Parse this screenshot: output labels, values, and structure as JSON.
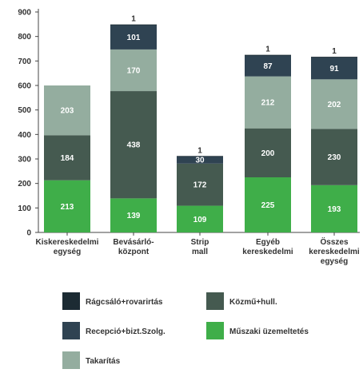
{
  "chart_data": {
    "type": "bar",
    "stacked": true,
    "categories": [
      [
        "Kiskereskedelmi",
        "egység"
      ],
      [
        "Bevásárló-",
        "központ"
      ],
      [
        "Strip",
        "mall"
      ],
      [
        "Egyéb",
        "kereskedelmi"
      ],
      [
        "Összes",
        "kereskedelmi",
        "egység"
      ]
    ],
    "ylim": [
      0,
      900
    ],
    "yticks": [
      0,
      100,
      200,
      300,
      400,
      500,
      600,
      700,
      800,
      900
    ],
    "grid": false,
    "legend_position": "bottom",
    "series": [
      {
        "name": "Műszaki üzemeltetés",
        "color": "#3fae49",
        "values": [
          213,
          139,
          109,
          225,
          193
        ]
      },
      {
        "name": "Közmű+hull.",
        "color": "#455a50",
        "values": [
          184,
          438,
          172,
          200,
          230
        ]
      },
      {
        "name": "Takarítás",
        "color": "#94ad9f",
        "values": [
          203,
          170,
          0,
          212,
          202
        ]
      },
      {
        "name": "Recepció+bizt.Szolg.",
        "color": "#2f4352",
        "values": [
          0,
          101,
          30,
          87,
          91
        ]
      },
      {
        "name": "Rágcsáló+rovarirtás",
        "color": "#1c2b33",
        "values": [
          0,
          1,
          1,
          1,
          1
        ]
      }
    ],
    "legend_order": [
      "Rágcsáló+rovarirtás",
      "Közmű+hull.",
      "Recepció+bizt.Szolg.",
      "Műszaki üzemeltetés",
      "Takarítás"
    ]
  }
}
